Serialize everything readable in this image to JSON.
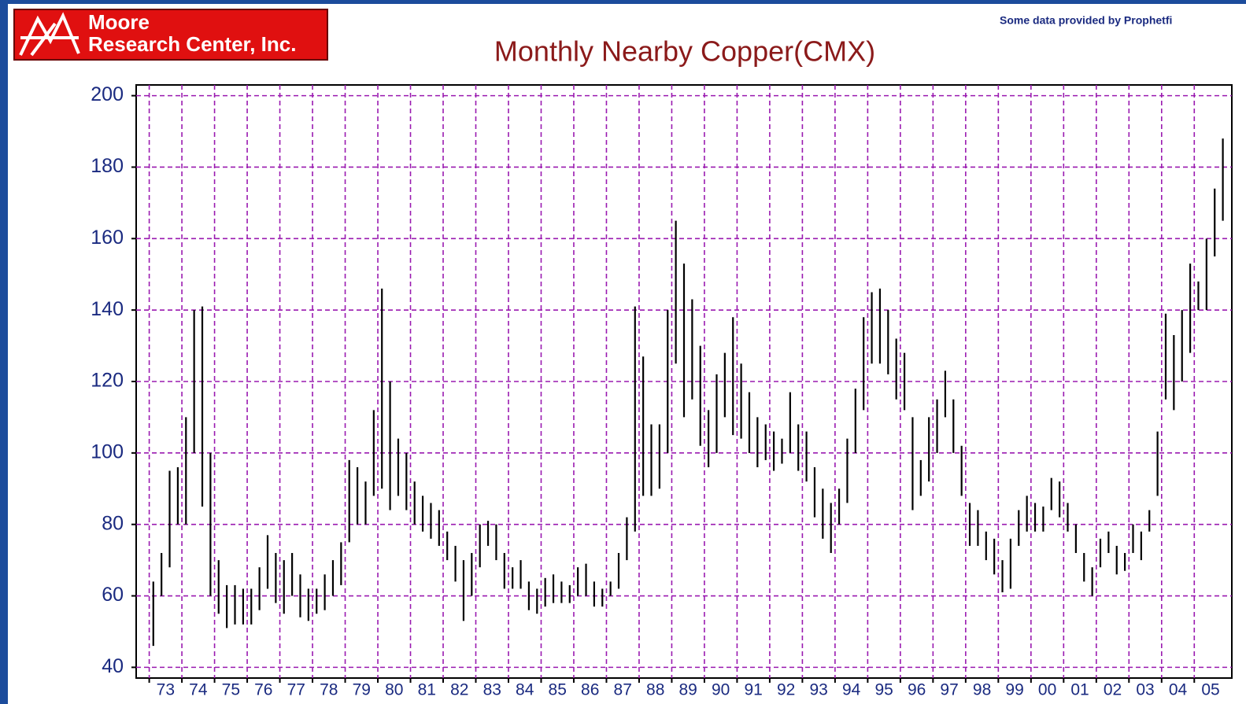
{
  "logo": {
    "line1": "Moore",
    "line2": "Research Center, Inc."
  },
  "credit": "Some data provided by Prophetfi",
  "chart_data": {
    "type": "range-bar",
    "title": "Monthly Nearby Copper(CMX)",
    "color": "#000000",
    "grid": true,
    "ylim": [
      37,
      203
    ],
    "yticks": [
      40,
      60,
      80,
      100,
      120,
      140,
      160,
      180,
      200
    ],
    "xlim": [
      1972.6,
      2006.15
    ],
    "xticks": [
      {
        "value": 1973,
        "label": "73"
      },
      {
        "value": 1974,
        "label": "74"
      },
      {
        "value": 1975,
        "label": "75"
      },
      {
        "value": 1976,
        "label": "76"
      },
      {
        "value": 1977,
        "label": "77"
      },
      {
        "value": 1978,
        "label": "78"
      },
      {
        "value": 1979,
        "label": "79"
      },
      {
        "value": 1980,
        "label": "80"
      },
      {
        "value": 1981,
        "label": "81"
      },
      {
        "value": 1982,
        "label": "82"
      },
      {
        "value": 1983,
        "label": "83"
      },
      {
        "value": 1984,
        "label": "84"
      },
      {
        "value": 1985,
        "label": "85"
      },
      {
        "value": 1986,
        "label": "86"
      },
      {
        "value": 1987,
        "label": "87"
      },
      {
        "value": 1988,
        "label": "88"
      },
      {
        "value": 1989,
        "label": "89"
      },
      {
        "value": 1990,
        "label": "90"
      },
      {
        "value": 1991,
        "label": "91"
      },
      {
        "value": 1992,
        "label": "92"
      },
      {
        "value": 1993,
        "label": "93"
      },
      {
        "value": 1994,
        "label": "94"
      },
      {
        "value": 1995,
        "label": "95"
      },
      {
        "value": 1996,
        "label": "96"
      },
      {
        "value": 1997,
        "label": "97"
      },
      {
        "value": 1998,
        "label": "98"
      },
      {
        "value": 1999,
        "label": "99"
      },
      {
        "value": 2000,
        "label": "00"
      },
      {
        "value": 2001,
        "label": "01"
      },
      {
        "value": 2002,
        "label": "02"
      },
      {
        "value": 2003,
        "label": "03"
      },
      {
        "value": 2004,
        "label": "04"
      },
      {
        "value": 2005,
        "label": "05"
      }
    ],
    "x": [
      1973.125,
      1973.375,
      1973.625,
      1973.875,
      1974.125,
      1974.375,
      1974.625,
      1974.875,
      1975.125,
      1975.375,
      1975.625,
      1975.875,
      1976.125,
      1976.375,
      1976.625,
      1976.875,
      1977.125,
      1977.375,
      1977.625,
      1977.875,
      1978.125,
      1978.375,
      1978.625,
      1978.875,
      1979.125,
      1979.375,
      1979.625,
      1979.875,
      1980.125,
      1980.375,
      1980.625,
      1980.875,
      1981.125,
      1981.375,
      1981.625,
      1981.875,
      1982.125,
      1982.375,
      1982.625,
      1982.875,
      1983.125,
      1983.375,
      1983.625,
      1983.875,
      1984.125,
      1984.375,
      1984.625,
      1984.875,
      1985.125,
      1985.375,
      1985.625,
      1985.875,
      1986.125,
      1986.375,
      1986.625,
      1986.875,
      1987.125,
      1987.375,
      1987.625,
      1987.875,
      1988.125,
      1988.375,
      1988.625,
      1988.875,
      1989.125,
      1989.375,
      1989.625,
      1989.875,
      1990.125,
      1990.375,
      1990.625,
      1990.875,
      1991.125,
      1991.375,
      1991.625,
      1991.875,
      1992.125,
      1992.375,
      1992.625,
      1992.875,
      1993.125,
      1993.375,
      1993.625,
      1993.875,
      1994.125,
      1994.375,
      1994.625,
      1994.875,
      1995.125,
      1995.375,
      1995.625,
      1995.875,
      1996.125,
      1996.375,
      1996.625,
      1996.875,
      1997.125,
      1997.375,
      1997.625,
      1997.875,
      1998.125,
      1998.375,
      1998.625,
      1998.875,
      1999.125,
      1999.375,
      1999.625,
      1999.875,
      2000.125,
      2000.375,
      2000.625,
      2000.875,
      2001.125,
      2001.375,
      2001.625,
      2001.875,
      2002.125,
      2002.375,
      2002.625,
      2002.875,
      2003.125,
      2003.375,
      2003.625,
      2003.875,
      2004.125,
      2004.375,
      2004.625,
      2004.875,
      2005.125,
      2005.375,
      2005.625,
      2005.875
    ],
    "high": [
      64,
      72,
      95,
      96,
      110,
      140,
      141,
      100,
      70,
      63,
      63,
      62,
      62,
      68,
      77,
      72,
      70,
      72,
      66,
      62,
      62,
      66,
      70,
      75,
      98,
      96,
      92,
      112,
      146,
      120,
      104,
      100,
      92,
      88,
      86,
      84,
      78,
      74,
      70,
      72,
      80,
      81,
      80,
      72,
      68,
      70,
      64,
      62,
      65,
      66,
      64,
      63,
      68,
      69,
      64,
      62,
      64,
      72,
      82,
      141,
      127,
      108,
      108,
      140,
      165,
      153,
      143,
      130,
      112,
      122,
      128,
      138,
      125,
      117,
      110,
      108,
      106,
      104,
      117,
      108,
      106,
      96,
      90,
      86,
      90,
      104,
      118,
      138,
      145,
      146,
      140,
      132,
      128,
      110,
      98,
      110,
      115,
      123,
      115,
      102,
      86,
      84,
      78,
      76,
      70,
      76,
      84,
      88,
      86,
      85,
      93,
      92,
      86,
      80,
      72,
      68,
      76,
      78,
      74,
      72,
      80,
      78,
      84,
      106,
      139,
      133,
      140,
      153,
      148,
      160,
      174,
      188
    ],
    "low": [
      46,
      60,
      68,
      80,
      80,
      100,
      85,
      60,
      55,
      51,
      52,
      52,
      52,
      56,
      62,
      58,
      55,
      60,
      54,
      53,
      55,
      56,
      60,
      63,
      75,
      80,
      80,
      88,
      90,
      84,
      88,
      84,
      80,
      78,
      76,
      74,
      70,
      64,
      53,
      60,
      68,
      74,
      70,
      62,
      62,
      62,
      56,
      55,
      57,
      58,
      58,
      58,
      60,
      60,
      57,
      57,
      60,
      62,
      70,
      78,
      88,
      88,
      90,
      100,
      125,
      110,
      115,
      102,
      96,
      100,
      110,
      105,
      104,
      100,
      96,
      98,
      95,
      97,
      100,
      95,
      92,
      82,
      76,
      72,
      80,
      86,
      100,
      112,
      125,
      125,
      122,
      115,
      112,
      84,
      88,
      92,
      100,
      110,
      100,
      88,
      74,
      74,
      70,
      66,
      61,
      62,
      74,
      78,
      78,
      78,
      84,
      82,
      78,
      72,
      64,
      60,
      68,
      72,
      66,
      67,
      72,
      70,
      78,
      88,
      115,
      112,
      120,
      128,
      140,
      140,
      155,
      165
    ]
  }
}
